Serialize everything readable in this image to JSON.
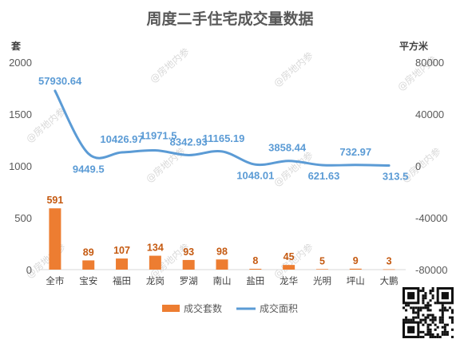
{
  "watermark": "@房地内参",
  "chart_data": {
    "type": "bar+line",
    "title": "周度二手住宅成交量数据",
    "y_left_label": "套",
    "y_right_label": "平方米",
    "y_left_ticks": [
      "0",
      "500",
      "1000",
      "1500",
      "2000"
    ],
    "y_right_ticks": [
      "-80000",
      "-40000",
      "0",
      "40000",
      "80000"
    ],
    "ylim_left": [
      0,
      2000
    ],
    "ylim_right": [
      -80000,
      80000
    ],
    "categories": [
      "全市",
      "宝安",
      "福田",
      "龙岗",
      "罗湖",
      "南山",
      "盐田",
      "龙华",
      "光明",
      "坪山",
      "大鹏"
    ],
    "series": [
      {
        "name": "成交套数",
        "type": "bar",
        "axis": "left",
        "color": "#ED7D31",
        "values": [
          591,
          89,
          107,
          134,
          93,
          98,
          8,
          45,
          5,
          9,
          3
        ],
        "labels": [
          "591",
          "89",
          "107",
          "134",
          "93",
          "98",
          "8",
          "45",
          "5",
          "9",
          "3"
        ]
      },
      {
        "name": "成交面积",
        "type": "line",
        "axis": "right",
        "color": "#5B9BD5",
        "values": [
          57930.64,
          9449.5,
          10426.97,
          11971.5,
          8342.93,
          11165.19,
          1048.01,
          3858.44,
          621.63,
          732.97,
          313.5
        ],
        "labels": [
          "57930.64",
          "9449.5",
          "10426.97",
          "11971.5",
          "8342.93",
          "11165.19",
          "1048.01",
          "3858.44",
          "621.63",
          "732.97",
          "313.5"
        ]
      }
    ],
    "legend_position": "bottom",
    "grid": false
  }
}
